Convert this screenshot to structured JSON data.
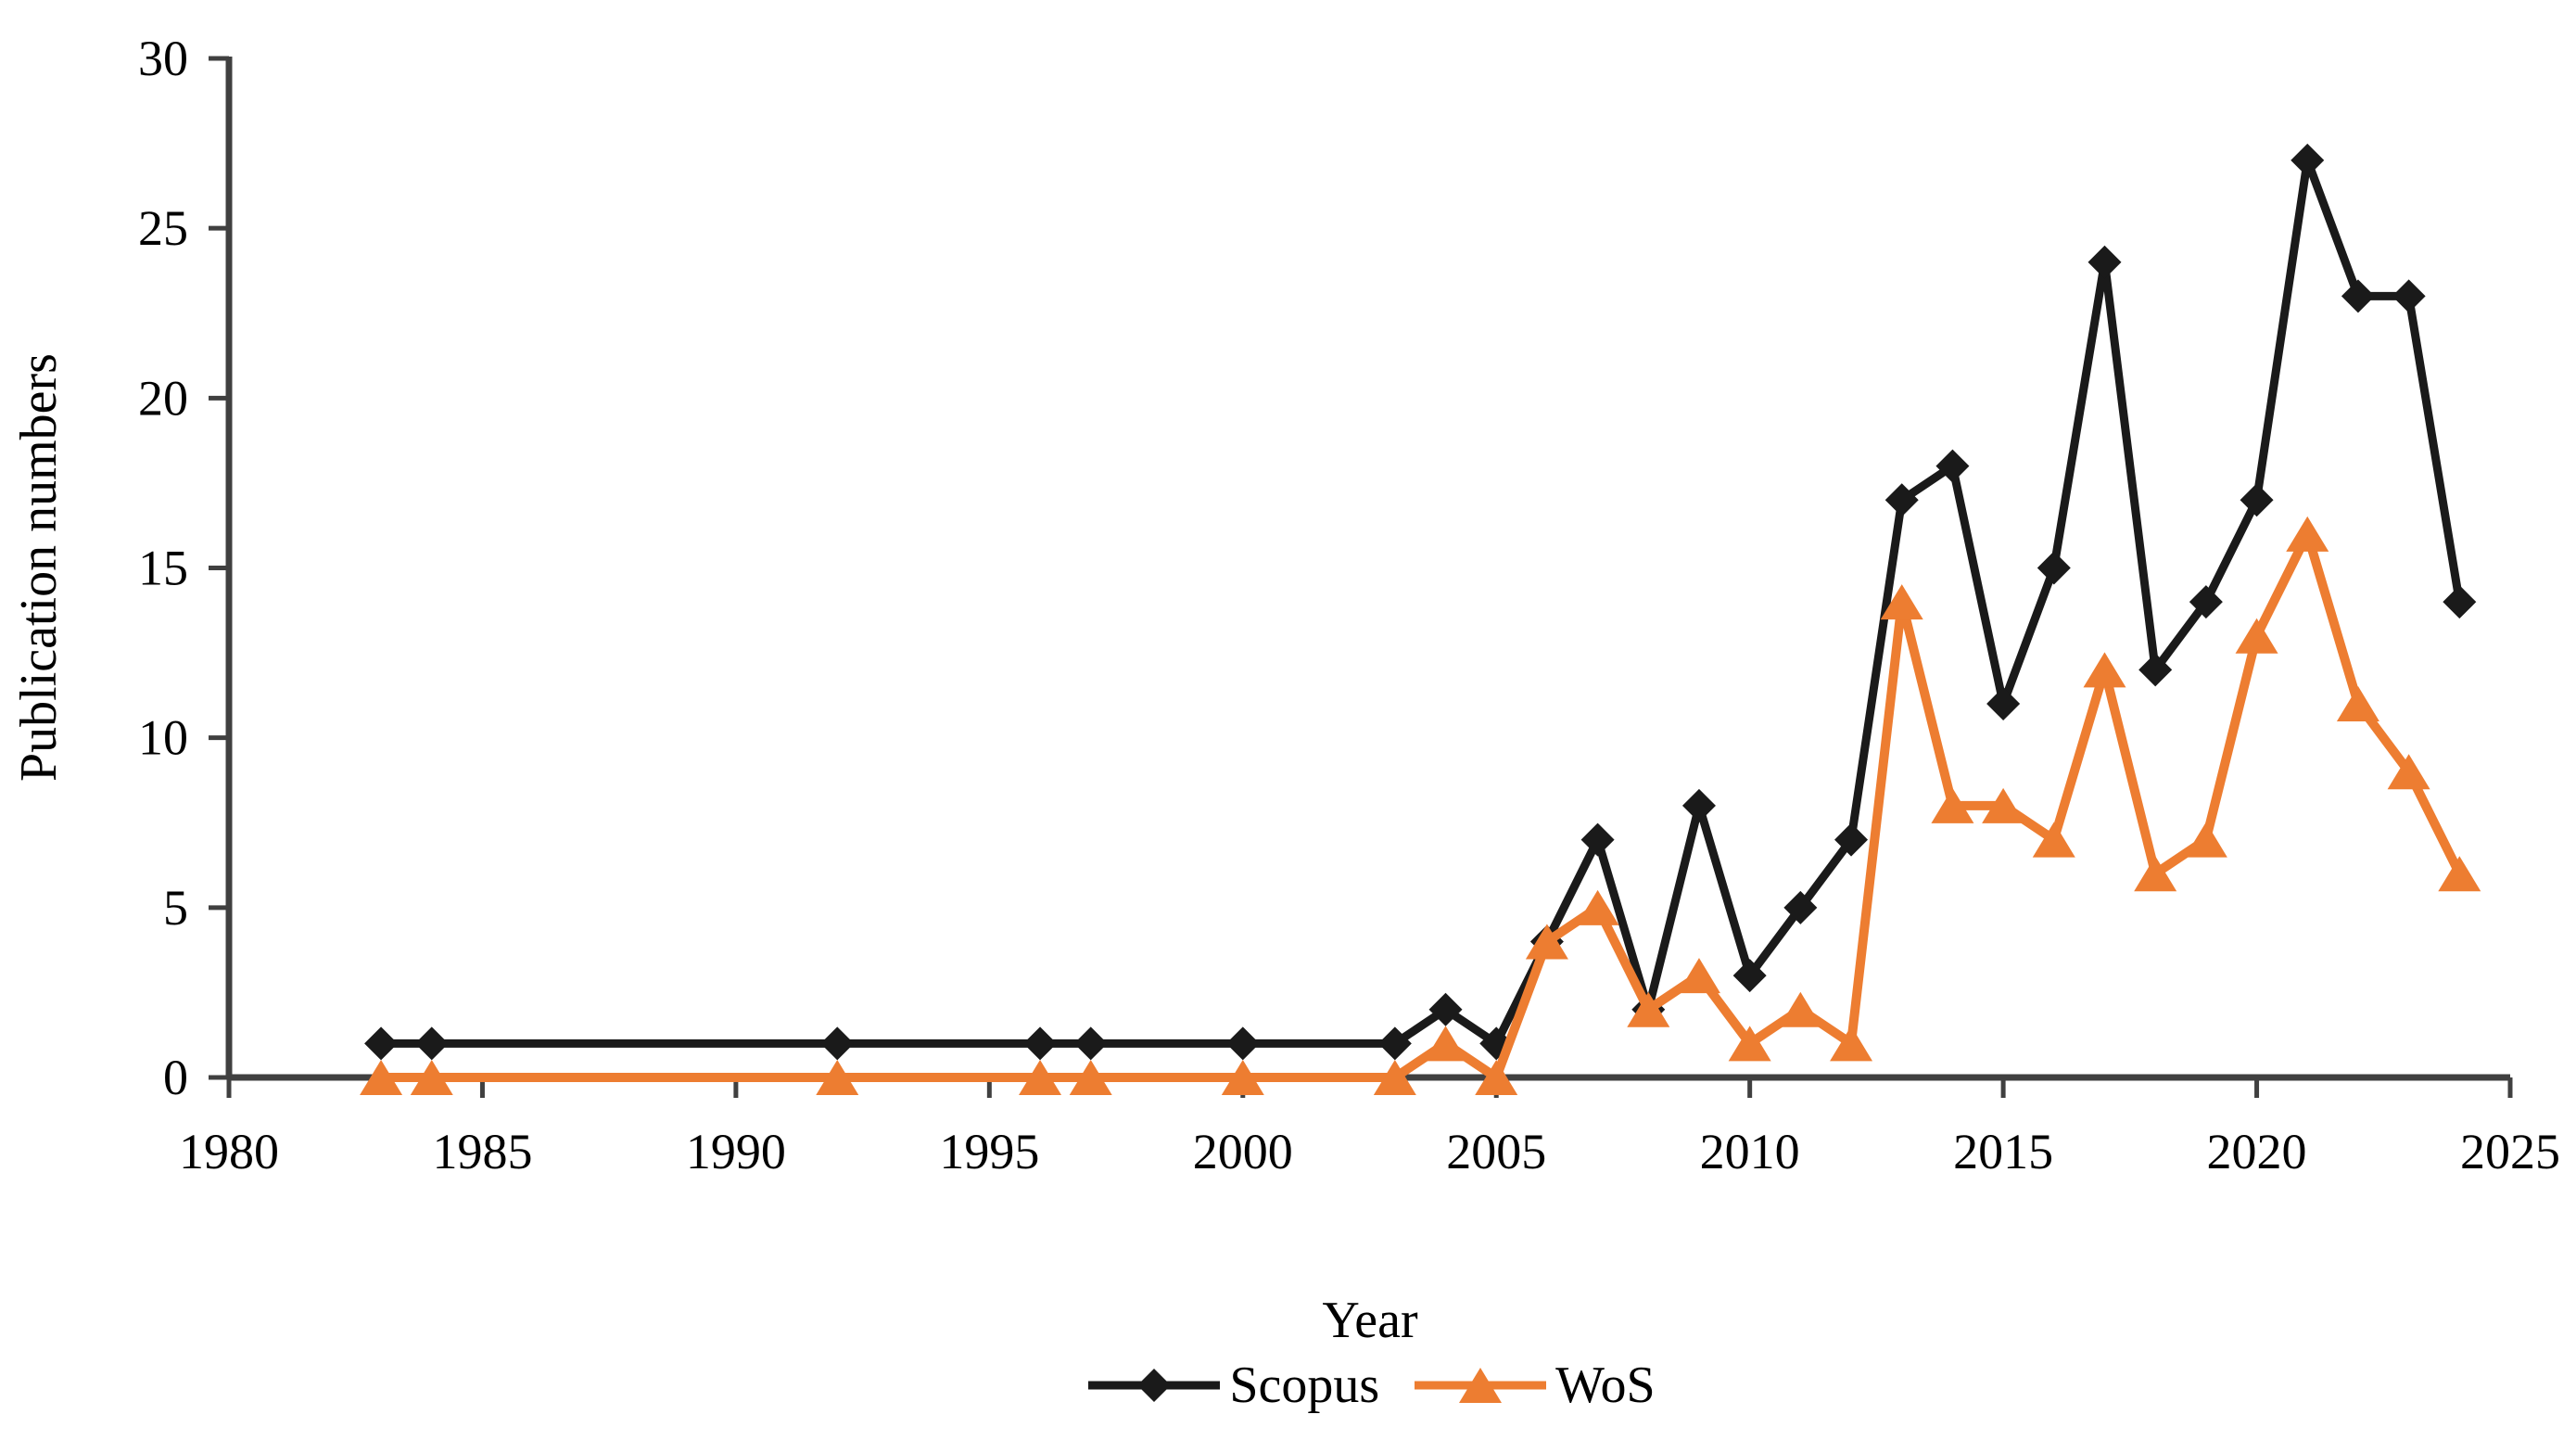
{
  "figure": {
    "background": "#ffffff",
    "text_color": "#000000",
    "axis_color": "#404040"
  },
  "chart_data": {
    "type": "line",
    "title": "",
    "xlabel": "Year",
    "ylabel": "Publication numbers",
    "xlim": [
      1980,
      2025
    ],
    "ylim": [
      0,
      30
    ],
    "x_ticks": [
      1980,
      1985,
      1990,
      1995,
      2000,
      2005,
      2010,
      2015,
      2020,
      2025
    ],
    "y_ticks": [
      0,
      5,
      10,
      15,
      20,
      25,
      30
    ],
    "grid": false,
    "legend_position": "bottom",
    "x": [
      1983,
      1984,
      1992,
      1996,
      1997,
      2000,
      2003,
      2004,
      2005,
      2006,
      2007,
      2008,
      2009,
      2010,
      2011,
      2012,
      2013,
      2014,
      2015,
      2016,
      2017,
      2018,
      2019,
      2020,
      2021,
      2022,
      2023,
      2024
    ],
    "series": [
      {
        "name": "Scopus",
        "color": "#1a1a1a",
        "marker": "diamond",
        "values": [
          1,
          1,
          1,
          1,
          1,
          1,
          1,
          2,
          1,
          4,
          7,
          2,
          8,
          3,
          5,
          7,
          17,
          18,
          11,
          15,
          24,
          12,
          14,
          17,
          27,
          23,
          23,
          14
        ]
      },
      {
        "name": "WoS",
        "color": "#ED7D31",
        "marker": "triangle",
        "values": [
          0,
          0,
          0,
          0,
          0,
          0,
          0,
          1,
          0,
          4,
          5,
          2,
          3,
          1,
          2,
          1,
          14,
          8,
          8,
          7,
          12,
          6,
          7,
          13,
          16,
          11,
          9,
          6
        ]
      }
    ]
  }
}
